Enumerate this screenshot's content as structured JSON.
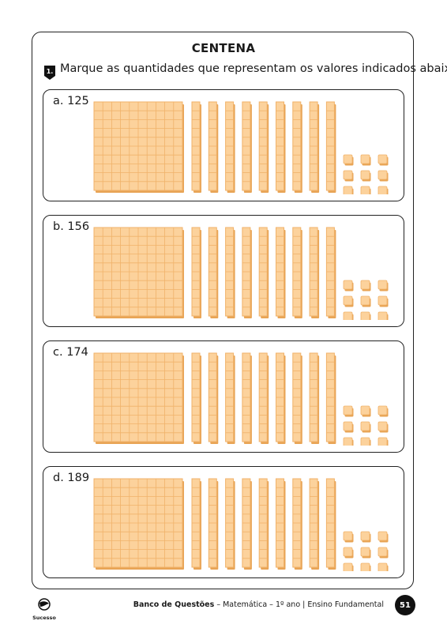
{
  "header": {
    "title": "CENTENA"
  },
  "question": {
    "number": "1.",
    "text": "Marque as quantidades que representam os valores indicados abaixo."
  },
  "items": [
    {
      "label": "a. 125",
      "hundreds": 1,
      "tens": 9,
      "units": 9
    },
    {
      "label": "b. 156",
      "hundreds": 1,
      "tens": 9,
      "units": 9
    },
    {
      "label": "c. 174",
      "hundreds": 1,
      "tens": 9,
      "units": 9
    },
    {
      "label": "d. 189",
      "hundreds": 1,
      "tens": 9,
      "units": 9
    }
  ],
  "colors": {
    "block_fill": "#fcd29c",
    "block_line": "#f0b26a",
    "block_shadow": "#e8a455"
  },
  "footer": {
    "brand": "Sucesso",
    "book": "Banco de Questões",
    "subject": " – Matemática – 1º ano | Ensino Fundamental",
    "page": "51"
  }
}
